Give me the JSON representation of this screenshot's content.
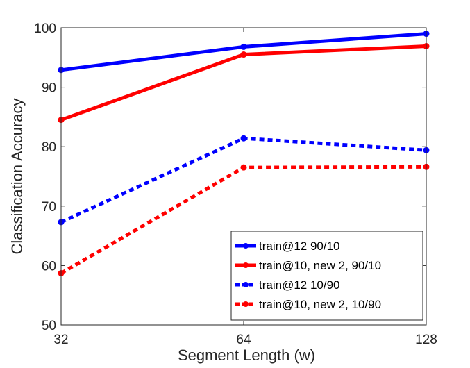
{
  "chart_data": {
    "type": "line",
    "title": "",
    "xlabel": "Segment Length (w)",
    "ylabel": "Classification Accuracy",
    "x_scale": "log2",
    "x": [
      32,
      64,
      128
    ],
    "x_ticks": [
      "32",
      "64",
      "128"
    ],
    "xlim": [
      32,
      128
    ],
    "ylim": [
      50,
      100
    ],
    "y_ticks": [
      "50",
      "60",
      "70",
      "80",
      "90",
      "100"
    ],
    "grid": false,
    "legend_position": "bottom-right",
    "series": [
      {
        "name": "train@12 90/10",
        "values": [
          92.9,
          96.8,
          99.0
        ],
        "color": "#0000ff",
        "style": "solid"
      },
      {
        "name": "train@10, new 2, 90/10",
        "values": [
          84.5,
          95.5,
          96.9
        ],
        "color": "#ff0000",
        "style": "solid"
      },
      {
        "name": "train@12 10/90",
        "values": [
          67.3,
          81.4,
          79.4
        ],
        "color": "#0000ff",
        "style": "dotted"
      },
      {
        "name": "train@10, new 2, 10/90",
        "values": [
          58.7,
          76.5,
          76.6
        ],
        "color": "#ff0000",
        "style": "dotted"
      }
    ]
  }
}
